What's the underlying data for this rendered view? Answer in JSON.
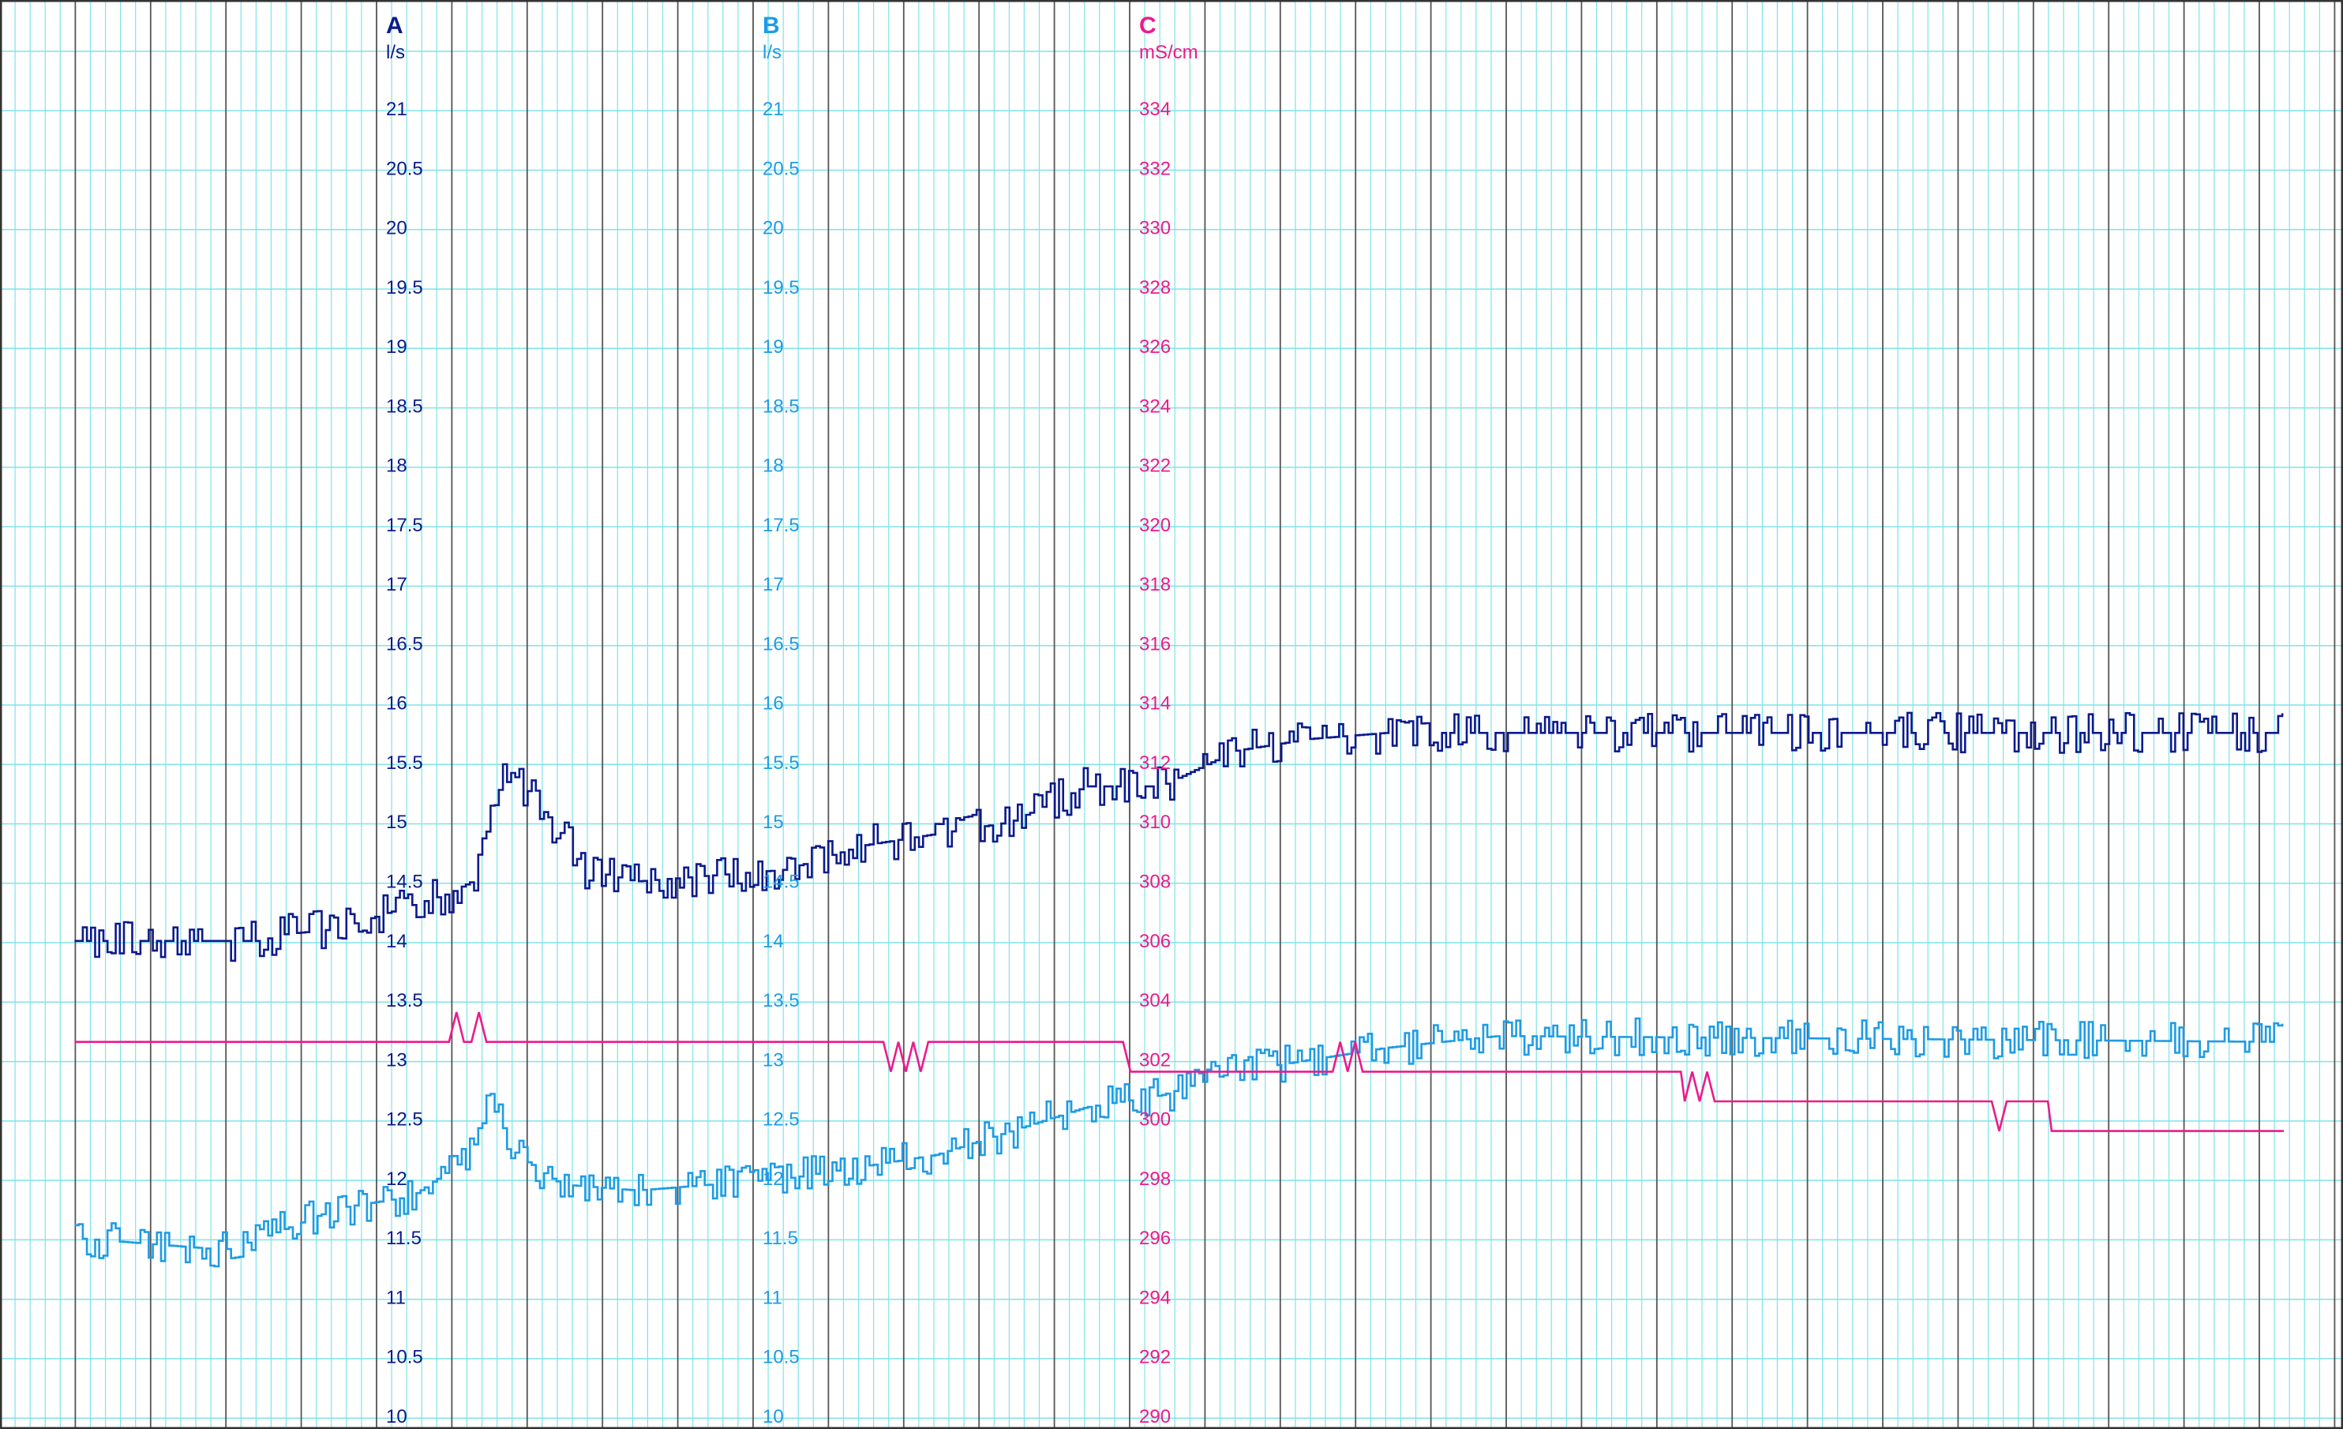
{
  "colors": {
    "background": "#ffffff",
    "grid_minor": "#7fe3e8",
    "grid_major": "#555555",
    "axis_a": "#0a1a8c",
    "axis_b": "#1e9be6",
    "axis_c": "#ec1a8c"
  },
  "chart_data": {
    "type": "line",
    "grid": true,
    "legend": "none",
    "axes": [
      {
        "id": "A",
        "name": "A",
        "unit": "l/s",
        "ticks": [
          "21",
          "20.5",
          "20",
          "19.5",
          "19",
          "18.5",
          "18",
          "17.5",
          "17",
          "16.5",
          "16",
          "15.5",
          "15",
          "14.5",
          "14",
          "13.5",
          "13",
          "12.5",
          "12",
          "11.5",
          "11",
          "10.5",
          "10"
        ],
        "range": [
          10,
          21.5
        ]
      },
      {
        "id": "B",
        "name": "B",
        "unit": "l/s",
        "ticks": [
          "21",
          "20.5",
          "20",
          "19.5",
          "19",
          "18.5",
          "18",
          "17.5",
          "17",
          "16.5",
          "16",
          "15.5",
          "15",
          "14.5",
          "14",
          "13.5",
          "13",
          "12.5",
          "12",
          "11.5",
          "11",
          "10.5",
          "10"
        ],
        "range": [
          10,
          21.5
        ]
      },
      {
        "id": "C",
        "name": "C",
        "unit": "mS/cm",
        "ticks": [
          "334",
          "332",
          "330",
          "328",
          "326",
          "324",
          "322",
          "320",
          "318",
          "316",
          "314",
          "312",
          "310",
          "308",
          "306",
          "304",
          "302",
          "300",
          "298",
          "296",
          "294",
          "292",
          "290"
        ],
        "range": [
          290,
          336
        ]
      }
    ],
    "x_range": [
      0,
      30
    ],
    "series": [
      {
        "axis": "A",
        "color": "#0a1a8c",
        "noise": 0.13,
        "points": [
          [
            0.5,
            14.0
          ],
          [
            2.5,
            14.0
          ],
          [
            3.0,
            14.0
          ],
          [
            3.2,
            14.05
          ],
          [
            4.0,
            14.1
          ],
          [
            4.5,
            14.2
          ],
          [
            5.0,
            14.3
          ],
          [
            5.5,
            14.4
          ],
          [
            5.8,
            14.5
          ],
          [
            6.2,
            15.5
          ],
          [
            6.5,
            15.3
          ],
          [
            7.0,
            14.9
          ],
          [
            7.3,
            14.6
          ],
          [
            8.0,
            14.5
          ],
          [
            10.0,
            14.6
          ],
          [
            11.0,
            14.8
          ],
          [
            12.0,
            14.9
          ],
          [
            13.0,
            15.0
          ],
          [
            14.0,
            15.3
          ],
          [
            15.0,
            15.3
          ],
          [
            16.0,
            15.6
          ],
          [
            17.0,
            15.7
          ],
          [
            18.0,
            15.75
          ],
          [
            30.0,
            15.75
          ]
        ]
      },
      {
        "axis": "B",
        "color": "#1e9be6",
        "noise": 0.12,
        "points": [
          [
            0.5,
            11.5
          ],
          [
            2.5,
            11.4
          ],
          [
            3.0,
            11.5
          ],
          [
            4.0,
            11.75
          ],
          [
            5.0,
            11.85
          ],
          [
            5.8,
            12.2
          ],
          [
            6.0,
            12.7
          ],
          [
            6.4,
            12.2
          ],
          [
            7.0,
            11.95
          ],
          [
            8.0,
            11.9
          ],
          [
            10.0,
            12.0
          ],
          [
            12.0,
            12.2
          ],
          [
            14.0,
            12.6
          ],
          [
            15.0,
            12.7
          ],
          [
            16.0,
            12.9
          ],
          [
            17.0,
            13.0
          ],
          [
            18.0,
            13.1
          ],
          [
            19.5,
            13.2
          ],
          [
            30.0,
            13.15
          ]
        ]
      },
      {
        "axis": "C",
        "color": "#ec1a8c",
        "noise": 0,
        "points": [
          [
            0.5,
            302.6
          ],
          [
            5.1,
            302.6
          ],
          [
            5.5,
            302.6
          ],
          [
            5.6,
            303.6
          ],
          [
            5.7,
            302.6
          ],
          [
            5.8,
            302.6
          ],
          [
            5.9,
            303.6
          ],
          [
            6.0,
            302.6
          ],
          [
            11.3,
            302.6
          ],
          [
            11.4,
            301.6
          ],
          [
            11.5,
            302.6
          ],
          [
            11.6,
            301.6
          ],
          [
            11.7,
            302.6
          ],
          [
            11.8,
            301.6
          ],
          [
            11.9,
            302.6
          ],
          [
            14.5,
            302.6
          ],
          [
            14.6,
            301.6
          ],
          [
            17.3,
            301.6
          ],
          [
            17.4,
            302.6
          ],
          [
            17.5,
            301.6
          ],
          [
            17.6,
            302.6
          ],
          [
            17.7,
            301.6
          ],
          [
            19.7,
            301.6
          ],
          [
            20.0,
            301.6
          ],
          [
            21.95,
            301.6
          ],
          [
            22.0,
            300.6
          ],
          [
            22.1,
            301.6
          ],
          [
            22.2,
            300.6
          ],
          [
            22.3,
            301.6
          ],
          [
            22.4,
            300.6
          ],
          [
            26.1,
            300.6
          ],
          [
            26.2,
            299.6
          ],
          [
            26.3,
            300.6
          ],
          [
            26.85,
            300.6
          ],
          [
            26.9,
            299.6
          ],
          [
            30.0,
            299.6
          ]
        ]
      }
    ]
  }
}
